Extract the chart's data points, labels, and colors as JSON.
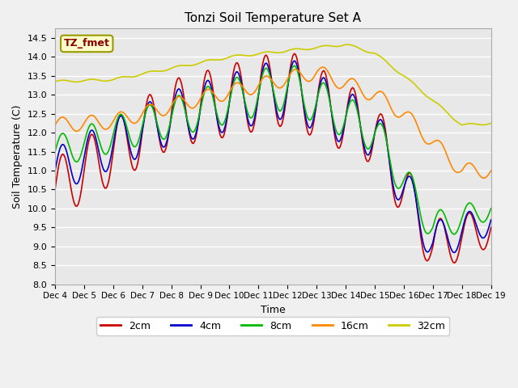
{
  "title": "Tonzi Soil Temperature Set A",
  "xlabel": "Time",
  "ylabel": "Soil Temperature (C)",
  "ylim": [
    8.0,
    14.75
  ],
  "annotation": "TZ_fmet",
  "bg_color": "#f0f0f0",
  "plot_bg": "#e8e8e8",
  "legend_labels": [
    "2cm",
    "4cm",
    "8cm",
    "16cm",
    "32cm"
  ],
  "legend_colors": [
    "#cc0000",
    "#0000cc",
    "#00bb00",
    "#ff8800",
    "#cccc00"
  ],
  "x_tick_labels": [
    "Dec 4",
    "Dec 5",
    "Dec 6",
    "Dec 7",
    "Dec 8",
    "Dec 9",
    "Dec 10",
    "Dec 11",
    "Dec 12",
    "Dec 13",
    "Dec 14",
    "Dec 15",
    "Dec 16",
    "Dec 17",
    "Dec 18",
    "Dec 19"
  ]
}
